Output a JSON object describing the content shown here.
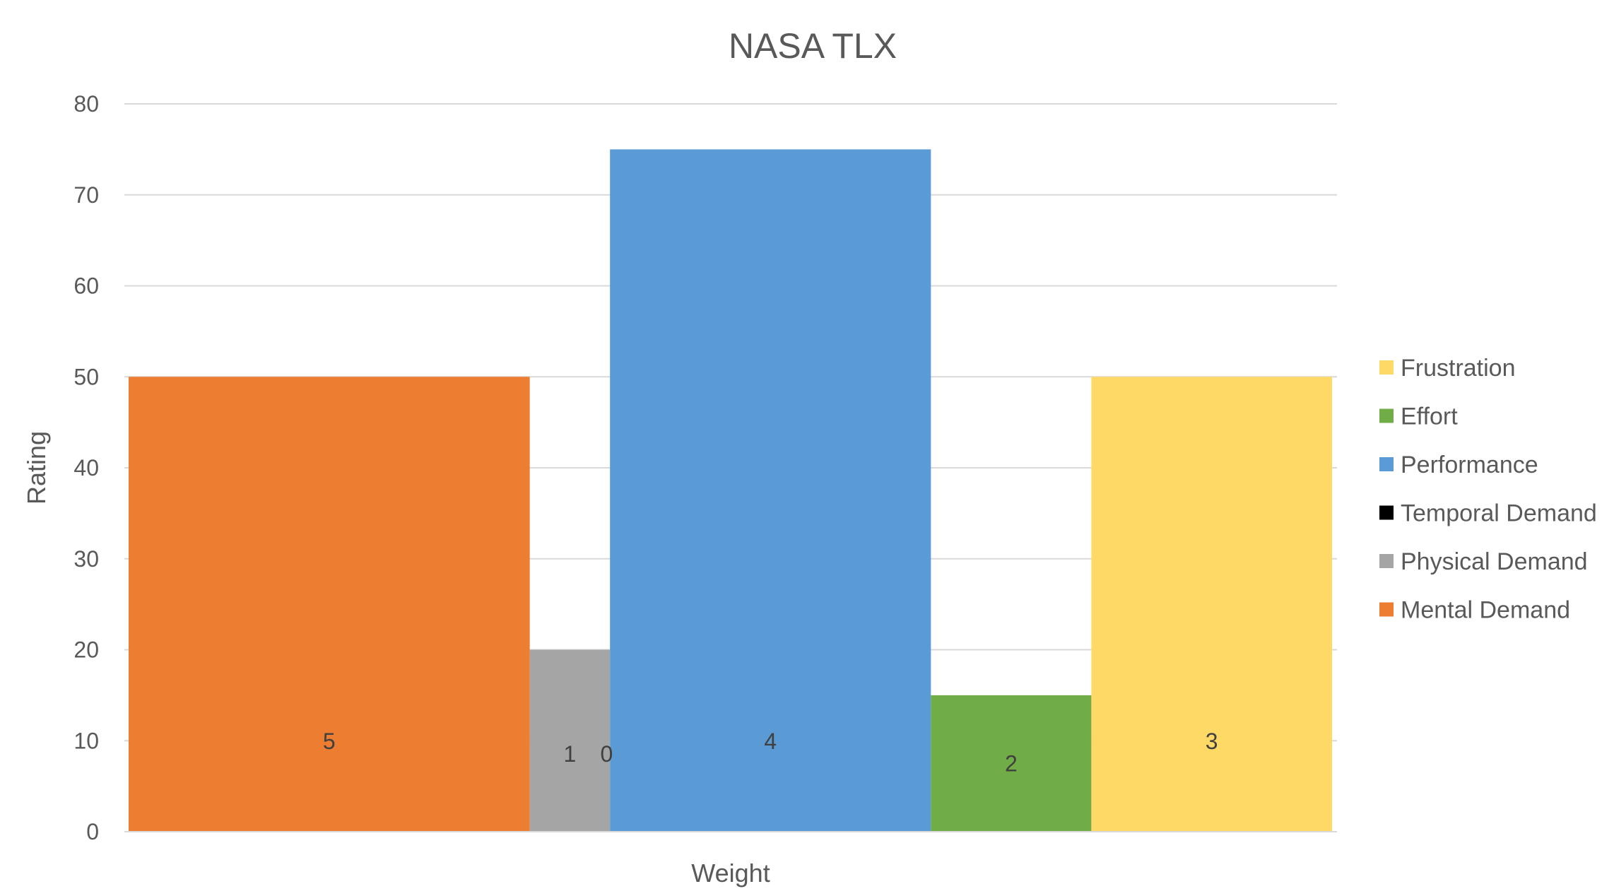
{
  "chart_data": {
    "type": "bar",
    "title": "NASA TLX",
    "xlabel": "Weight",
    "ylabel": "Rating",
    "ylim": [
      0,
      80
    ],
    "yticks": [
      0,
      10,
      20,
      30,
      40,
      50,
      60,
      70,
      80
    ],
    "grid": true,
    "legend_position": "right",
    "series": [
      {
        "name": "Mental Demand",
        "weight": 5,
        "value": 50,
        "color": "#ED7D31"
      },
      {
        "name": "Physical Demand",
        "weight": 1,
        "value": 20,
        "color": "#A5A5A5"
      },
      {
        "name": "Temporal Demand",
        "weight": 0,
        "value": 0,
        "color": "#000000"
      },
      {
        "name": "Performance",
        "weight": 4,
        "value": 75,
        "color": "#5B9BD5"
      },
      {
        "name": "Effort",
        "weight": 2,
        "value": 15,
        "color": "#70AD47"
      },
      {
        "name": "Frustration",
        "weight": 3,
        "value": 50,
        "color": "#FFD966"
      }
    ],
    "legend_order": [
      "Frustration",
      "Effort",
      "Performance",
      "Temporal Demand",
      "Physical Demand",
      "Mental Demand"
    ]
  }
}
